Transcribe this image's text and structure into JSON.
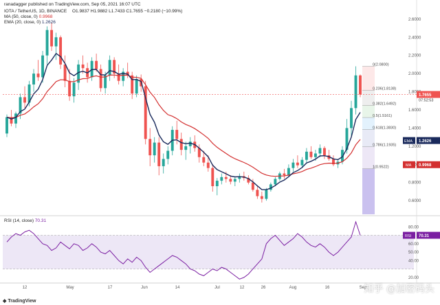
{
  "header": {
    "published": "ranadagger published on TradingView.com, Sep 05, 2021 16:07 UTC",
    "symbol": "IOTA / TetherUS, 1D, BINANCE",
    "ohlc": "O1.9837 H1.9882 L1.7433 C1.7655 −0.2180 (−10.99%)",
    "ma": "MA (50, close, 0)",
    "ma_value": "0.9968",
    "ema": "EMA (20, close, 0)",
    "ema_value": "1.2626",
    "rsi": "RSI (14, close)",
    "rsi_value": "70.31"
  },
  "footer": {
    "logo": "TradingView",
    "watermark": "知乎 @加密码头"
  },
  "colors": {
    "up": "#26a69a",
    "down": "#ef5350",
    "ema": "#1a2a5c",
    "ma": "#d32f2f",
    "rsi": "#7b1fa2",
    "rsi_band": "#ede7f6",
    "price_tag": "#ef5350",
    "ema_tag": "#1a2a5c",
    "ma_tag": "#d32f2f",
    "rsi_tag": "#7b1fa2"
  },
  "chart_data": [
    {
      "type": "candlestick",
      "y_ticks": [
        "2.6000",
        "2.4000",
        "2.2000",
        "2.0000",
        "1.8000",
        "1.6000",
        "1.4000",
        "1.2000",
        "1.0000",
        "0.8000",
        "0.6000"
      ],
      "ylim": [
        0.45,
        2.75
      ],
      "x_ticks": [
        "12",
        "May",
        "17",
        "Jun",
        "14",
        "Jul",
        "12",
        "26",
        "Aug",
        "16",
        "Sep"
      ],
      "price_tags": {
        "price": "1.7655",
        "countdown": "07:52:53",
        "ema": "1.2626",
        "ma": "0.9968"
      },
      "candles_approx": [
        [
          1.34,
          1.55,
          1.3,
          1.52
        ],
        [
          1.52,
          1.6,
          1.42,
          1.45
        ],
        [
          1.45,
          1.58,
          1.4,
          1.56
        ],
        [
          1.56,
          1.78,
          1.5,
          1.74
        ],
        [
          1.74,
          1.86,
          1.62,
          1.68
        ],
        [
          1.68,
          1.92,
          1.64,
          1.88
        ],
        [
          1.88,
          2.05,
          1.8,
          2.0
        ],
        [
          2.0,
          2.15,
          1.92,
          1.96
        ],
        [
          1.96,
          2.25,
          1.9,
          2.2
        ],
        [
          2.2,
          2.52,
          2.1,
          2.48
        ],
        [
          2.48,
          2.56,
          2.25,
          2.3
        ],
        [
          2.3,
          2.45,
          2.15,
          2.4
        ],
        [
          2.4,
          2.42,
          2.05,
          2.1
        ],
        [
          2.1,
          2.2,
          1.85,
          1.92
        ],
        [
          1.92,
          2.05,
          1.7,
          1.75
        ],
        [
          1.75,
          1.95,
          1.68,
          1.9
        ],
        [
          1.9,
          2.15,
          1.82,
          2.1
        ],
        [
          2.1,
          2.2,
          2.0,
          2.06
        ],
        [
          2.06,
          2.12,
          1.9,
          1.96
        ],
        [
          1.96,
          2.18,
          1.92,
          2.14
        ],
        [
          2.14,
          2.22,
          2.02,
          2.05
        ],
        [
          2.05,
          2.1,
          1.8,
          1.84
        ],
        [
          1.84,
          2.02,
          1.78,
          1.98
        ],
        [
          1.98,
          2.2,
          1.92,
          2.15
        ],
        [
          2.15,
          2.18,
          1.95,
          2.0
        ],
        [
          2.0,
          2.1,
          1.88,
          1.92
        ],
        [
          1.92,
          2.06,
          1.86,
          2.02
        ],
        [
          2.02,
          2.12,
          1.95,
          1.98
        ],
        [
          1.98,
          2.02,
          1.72,
          1.78
        ],
        [
          1.78,
          1.98,
          1.74,
          1.94
        ],
        [
          1.94,
          1.99,
          1.8,
          1.86
        ],
        [
          1.86,
          1.92,
          1.22,
          1.28
        ],
        [
          1.28,
          1.4,
          0.98,
          1.1
        ],
        [
          1.1,
          1.3,
          1.02,
          1.24
        ],
        [
          1.24,
          1.3,
          0.88,
          0.98
        ],
        [
          0.98,
          1.12,
          0.9,
          1.06
        ],
        [
          1.06,
          1.2,
          1.0,
          1.15
        ],
        [
          1.15,
          1.42,
          1.1,
          1.38
        ],
        [
          1.38,
          1.48,
          1.22,
          1.28
        ],
        [
          1.28,
          1.35,
          1.1,
          1.16
        ],
        [
          1.16,
          1.25,
          1.05,
          1.2
        ],
        [
          1.2,
          1.3,
          1.12,
          1.25
        ],
        [
          1.25,
          1.32,
          1.14,
          1.18
        ],
        [
          1.18,
          1.22,
          1.02,
          1.08
        ],
        [
          1.08,
          1.15,
          0.98,
          1.02
        ],
        [
          1.02,
          1.1,
          0.92,
          0.96
        ],
        [
          0.96,
          1.0,
          0.7,
          0.76
        ],
        [
          0.76,
          0.85,
          0.66,
          0.82
        ],
        [
          0.82,
          0.9,
          0.78,
          0.86
        ],
        [
          0.86,
          0.92,
          0.8,
          0.84
        ],
        [
          0.84,
          0.88,
          0.78,
          0.81
        ],
        [
          0.81,
          0.86,
          0.76,
          0.84
        ],
        [
          0.84,
          0.9,
          0.8,
          0.87
        ],
        [
          0.87,
          0.92,
          0.82,
          0.85
        ],
        [
          0.85,
          0.88,
          0.78,
          0.8
        ],
        [
          0.8,
          0.84,
          0.7,
          0.72
        ],
        [
          0.72,
          0.76,
          0.62,
          0.65
        ],
        [
          0.65,
          0.7,
          0.58,
          0.62
        ],
        [
          0.62,
          0.74,
          0.6,
          0.72
        ],
        [
          0.72,
          0.8,
          0.7,
          0.78
        ],
        [
          0.78,
          0.86,
          0.76,
          0.84
        ],
        [
          0.84,
          0.92,
          0.82,
          0.9
        ],
        [
          0.9,
          0.95,
          0.84,
          0.88
        ],
        [
          0.88,
          1.0,
          0.86,
          0.96
        ],
        [
          0.96,
          1.06,
          0.92,
          1.02
        ],
        [
          1.02,
          1.1,
          0.96,
          0.99
        ],
        [
          0.99,
          1.08,
          0.96,
          1.05
        ],
        [
          1.05,
          1.18,
          1.02,
          1.14
        ],
        [
          1.14,
          1.2,
          1.06,
          1.08
        ],
        [
          1.08,
          1.16,
          1.04,
          1.12
        ],
        [
          1.12,
          1.22,
          1.08,
          1.18
        ],
        [
          1.18,
          1.2,
          1.06,
          1.1
        ],
        [
          1.1,
          1.16,
          1.04,
          1.06
        ],
        [
          1.06,
          1.1,
          0.98,
          1.0
        ],
        [
          1.0,
          1.06,
          0.96,
          1.03
        ],
        [
          1.03,
          1.2,
          1.0,
          1.16
        ],
        [
          1.16,
          1.5,
          1.12,
          1.4
        ],
        [
          1.4,
          1.7,
          1.3,
          1.62
        ],
        [
          1.62,
          2.08,
          1.55,
          1.98
        ],
        [
          1.98,
          1.99,
          1.74,
          1.77
        ]
      ]
    },
    {
      "type": "line",
      "name": "RSI (14, close)",
      "y_ticks": [
        "80.00",
        "60.00",
        "50.00",
        "40.00",
        "20.00"
      ],
      "ylim": [
        15,
        90
      ],
      "band": [
        30,
        70
      ],
      "values": [
        62,
        68,
        72,
        70,
        74,
        76,
        72,
        66,
        60,
        58,
        52,
        55,
        62,
        58,
        54,
        60,
        58,
        52,
        55,
        60,
        56,
        50,
        48,
        52,
        46,
        40,
        36,
        42,
        38,
        44,
        40,
        32,
        26,
        30,
        34,
        38,
        42,
        46,
        44,
        40,
        36,
        30,
        28,
        24,
        22,
        26,
        30,
        28,
        32,
        30,
        26,
        22,
        18,
        20,
        24,
        30,
        36,
        42,
        60,
        66,
        70,
        64,
        58,
        62,
        66,
        72,
        68,
        62,
        58,
        56,
        60,
        56,
        50,
        46,
        50,
        56,
        62,
        68,
        86,
        70
      ]
    }
  ],
  "fib_levels": [
    {
      "label": "0(2.0800)",
      "value": 2.08,
      "fill": "#fde8e8"
    },
    {
      "label": "0.236(1.8138)",
      "value": 1.8138,
      "fill": "#eeeeee"
    },
    {
      "label": "0.382(1.6492)",
      "value": 1.6492,
      "fill": "#e8f5e9"
    },
    {
      "label": "0.5(1.5161)",
      "value": 1.5161,
      "fill": "#e3f2fd"
    },
    {
      "label": "0.618(1.3830)",
      "value": 1.383,
      "fill": "#e8eaf6"
    },
    {
      "label": "0.786(1.1935)",
      "value": 1.1935,
      "fill": "#ede7f6"
    },
    {
      "label": "1(0.9522)",
      "value": 0.9522,
      "fill": "#ede7f6"
    }
  ]
}
